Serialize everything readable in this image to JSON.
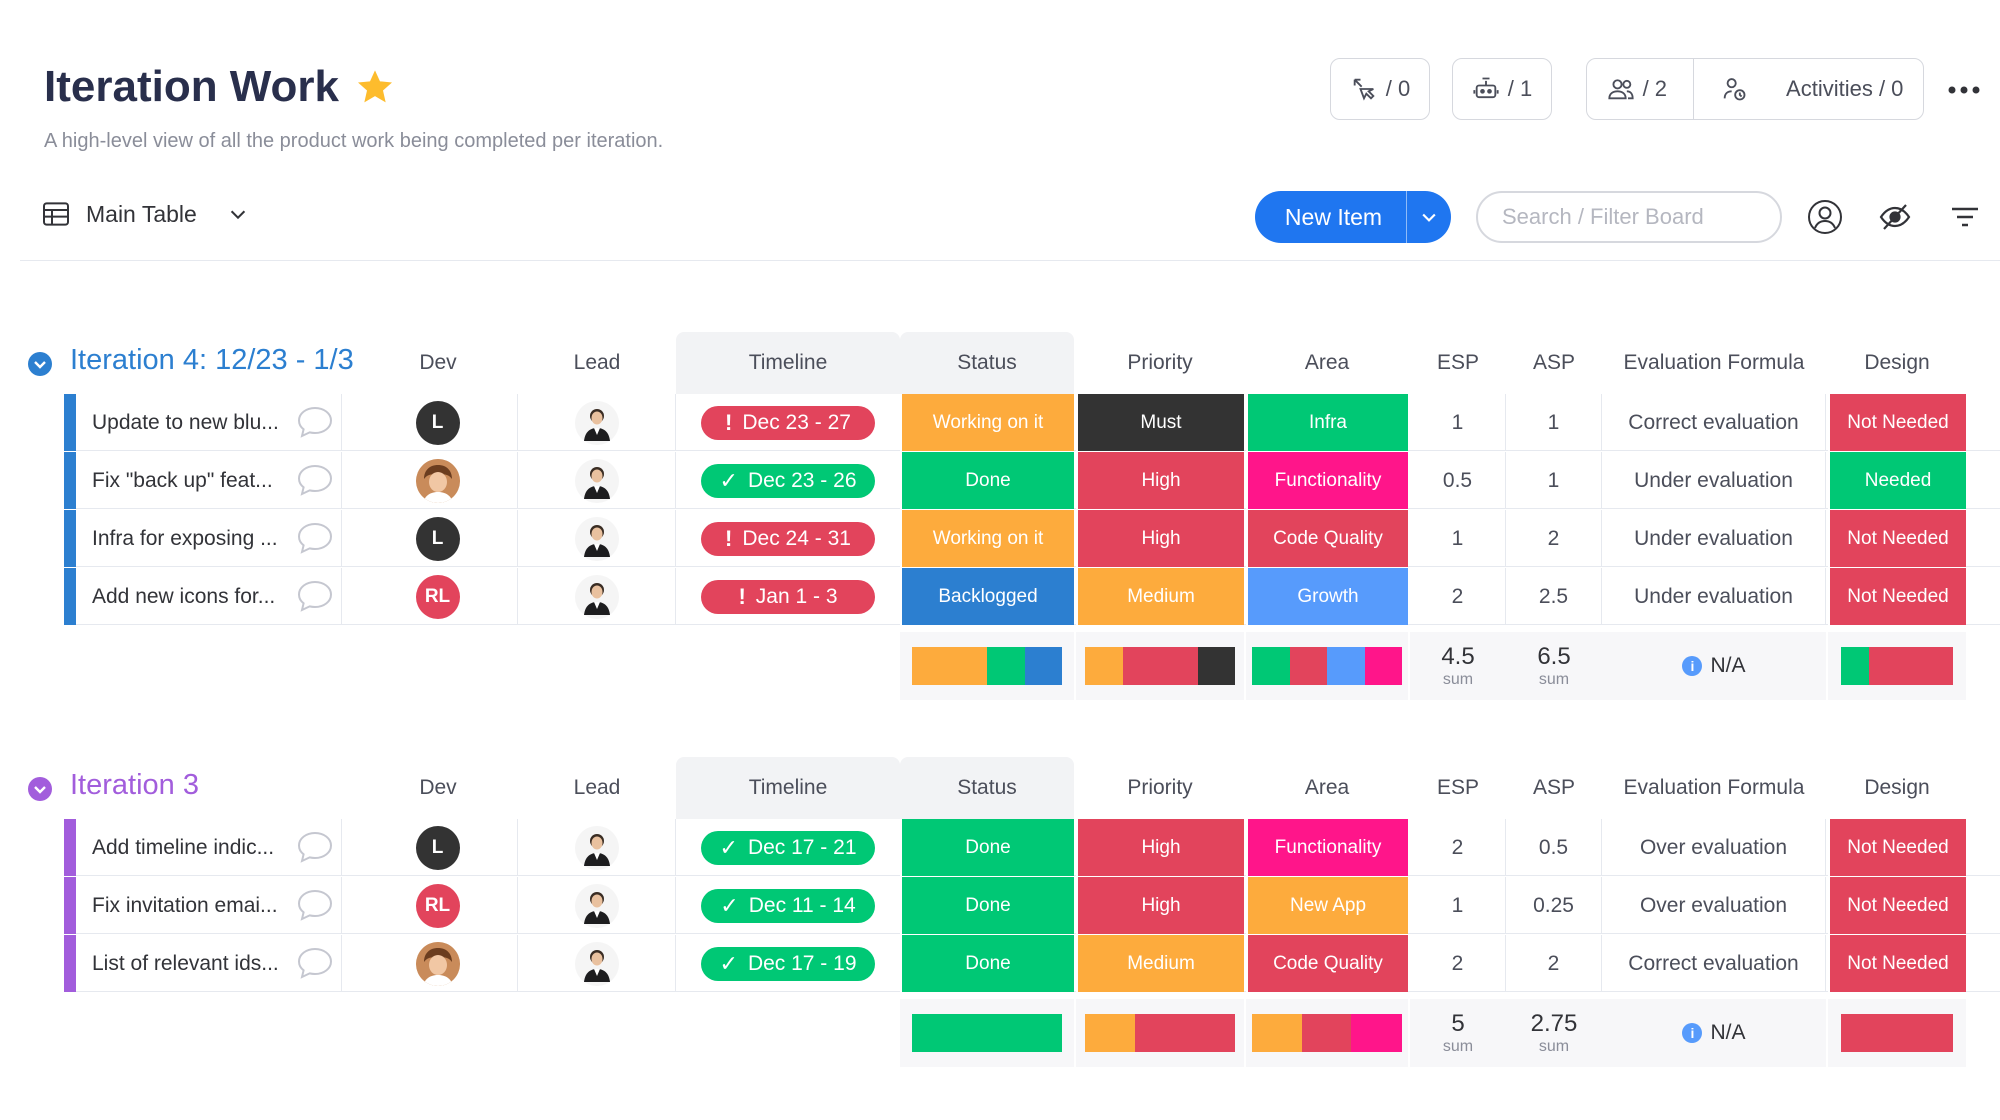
{
  "board": {
    "title": "Iteration Work",
    "subtitle": "A high-level view of all the product work being completed per iteration.",
    "automations_count": "/ 0",
    "integrations_count": "/ 1",
    "members_count": "/ 2",
    "activities_label": "Activities / 0"
  },
  "toolbar": {
    "view_label": "Main Table",
    "new_item_label": "New Item",
    "search_placeholder": "Search / Filter Board"
  },
  "columns": {
    "dev": "Dev",
    "lead": "Lead",
    "timeline": "Timeline",
    "status": "Status",
    "priority": "Priority",
    "area": "Area",
    "esp": "ESP",
    "asp": "ASP",
    "evaluation": "Evaluation Formula",
    "design": "Design"
  },
  "colors": {
    "working_on_it": "#fdab3d",
    "done": "#00c875",
    "backlogged": "#2c7fd0",
    "must": "#333333",
    "high": "#e2445c",
    "medium": "#fdab3d",
    "infra": "#00c875",
    "functionality": "#ff158a",
    "code_quality": "#e2445c",
    "growth": "#579bfc",
    "new_app": "#fdab3d",
    "not_needed": "#e2445c",
    "needed": "#00c875",
    "group1": "#2c7fd0",
    "group2": "#a25ddc"
  },
  "groups": [
    {
      "title": "Iteration 4: 12/23 - 1/3",
      "color": "#2c7fd0",
      "rows": [
        {
          "name": "Update to new blu...",
          "dev": "L",
          "dev_type": "letter",
          "timeline": "Dec 23 - 27",
          "timeline_state": "overdue",
          "status": "Working on it",
          "status_color": "#fdab3d",
          "priority": "Must",
          "priority_color": "#333333",
          "area": "Infra",
          "area_color": "#00c875",
          "esp": "1",
          "asp": "1",
          "evaluation": "Correct evaluation",
          "design": "Not Needed",
          "design_color": "#e2445c"
        },
        {
          "name": "Fix \"back up\" feat...",
          "dev": "",
          "dev_type": "photo",
          "timeline": "Dec 23 - 26",
          "timeline_state": "done",
          "status": "Done",
          "status_color": "#00c875",
          "priority": "High",
          "priority_color": "#e2445c",
          "area": "Functionality",
          "area_color": "#ff158a",
          "esp": "0.5",
          "asp": "1",
          "evaluation": "Under evaluation",
          "design": "Needed",
          "design_color": "#00c875"
        },
        {
          "name": "Infra for exposing ...",
          "dev": "L",
          "dev_type": "letter",
          "timeline": "Dec 24 - 31",
          "timeline_state": "overdue",
          "status": "Working on it",
          "status_color": "#fdab3d",
          "priority": "High",
          "priority_color": "#e2445c",
          "area": "Code Quality",
          "area_color": "#e2445c",
          "esp": "1",
          "asp": "2",
          "evaluation": "Under evaluation",
          "design": "Not Needed",
          "design_color": "#e2445c"
        },
        {
          "name": "Add new icons for...",
          "dev": "RL",
          "dev_type": "initials",
          "timeline": "Jan 1 - 3",
          "timeline_state": "overdue",
          "status": "Backlogged",
          "status_color": "#2c7fd0",
          "priority": "Medium",
          "priority_color": "#fdab3d",
          "area": "Growth",
          "area_color": "#579bfc",
          "esp": "2",
          "asp": "2.5",
          "evaluation": "Under evaluation",
          "design": "Not Needed",
          "design_color": "#e2445c"
        }
      ],
      "summary": {
        "status_bar": [
          {
            "color": "#fdab3d",
            "share": 0.5
          },
          {
            "color": "#00c875",
            "share": 0.25
          },
          {
            "color": "#2c7fd0",
            "share": 0.25
          }
        ],
        "priority_bar": [
          {
            "color": "#fdab3d",
            "share": 0.25
          },
          {
            "color": "#e2445c",
            "share": 0.5
          },
          {
            "color": "#333333",
            "share": 0.25
          }
        ],
        "area_bar": [
          {
            "color": "#00c875",
            "share": 0.25
          },
          {
            "color": "#e2445c",
            "share": 0.25
          },
          {
            "color": "#579bfc",
            "share": 0.25
          },
          {
            "color": "#ff158a",
            "share": 0.25
          }
        ],
        "design_bar": [
          {
            "color": "#00c875",
            "share": 0.25
          },
          {
            "color": "#e2445c",
            "share": 0.75
          }
        ],
        "esp_sum": "4.5",
        "asp_sum": "6.5",
        "sum_label": "sum",
        "evaluation": "N/A"
      }
    },
    {
      "title": "Iteration 3",
      "color": "#a25ddc",
      "rows": [
        {
          "name": "Add timeline indic...",
          "dev": "L",
          "dev_type": "letter",
          "timeline": "Dec 17 - 21",
          "timeline_state": "done",
          "status": "Done",
          "status_color": "#00c875",
          "priority": "High",
          "priority_color": "#e2445c",
          "area": "Functionality",
          "area_color": "#ff158a",
          "esp": "2",
          "asp": "0.5",
          "evaluation": "Over evaluation",
          "design": "Not Needed",
          "design_color": "#e2445c"
        },
        {
          "name": "Fix invitation emai...",
          "dev": "RL",
          "dev_type": "initials",
          "timeline": "Dec 11 - 14",
          "timeline_state": "done",
          "status": "Done",
          "status_color": "#00c875",
          "priority": "High",
          "priority_color": "#e2445c",
          "area": "New App",
          "area_color": "#fdab3d",
          "esp": "1",
          "asp": "0.25",
          "evaluation": "Over evaluation",
          "design": "Not Needed",
          "design_color": "#e2445c"
        },
        {
          "name": "List of relevant ids...",
          "dev": "",
          "dev_type": "photo",
          "timeline": "Dec 17 - 19",
          "timeline_state": "done",
          "status": "Done",
          "status_color": "#00c875",
          "priority": "Medium",
          "priority_color": "#fdab3d",
          "area": "Code Quality",
          "area_color": "#e2445c",
          "esp": "2",
          "asp": "2",
          "evaluation": "Correct evaluation",
          "design": "Not Needed",
          "design_color": "#e2445c"
        }
      ],
      "summary": {
        "status_bar": [
          {
            "color": "#00c875",
            "share": 1
          }
        ],
        "priority_bar": [
          {
            "color": "#fdab3d",
            "share": 0.33
          },
          {
            "color": "#e2445c",
            "share": 0.67
          }
        ],
        "area_bar": [
          {
            "color": "#fdab3d",
            "share": 0.33
          },
          {
            "color": "#e2445c",
            "share": 0.33
          },
          {
            "color": "#ff158a",
            "share": 0.34
          }
        ],
        "design_bar": [
          {
            "color": "#e2445c",
            "share": 1
          }
        ],
        "esp_sum": "5",
        "asp_sum": "2.75",
        "sum_label": "sum",
        "evaluation": "N/A"
      }
    }
  ]
}
